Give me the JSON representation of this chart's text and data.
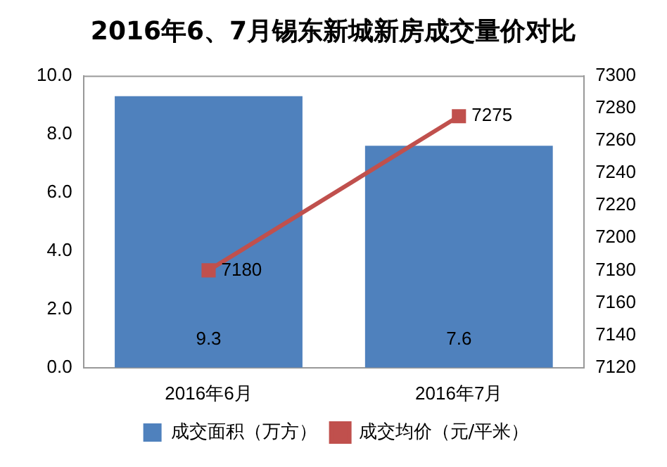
{
  "chart_data": {
    "type": "bar",
    "title": "2016年6、7月锡东新城新房成交量价对比",
    "categories": [
      "2016年6月",
      "2016年7月"
    ],
    "series": [
      {
        "name": "成交面积（万方）",
        "color": "#4f81bd",
        "values": [
          9.3,
          7.6
        ]
      },
      {
        "name": "成交均价（元/平米）",
        "type": "line",
        "axis": "y2",
        "color": "#c0504d",
        "values": [
          7180,
          7275
        ]
      }
    ],
    "ylim": [
      0,
      10
    ],
    "yticks": [
      {
        "value": 0,
        "label": "0.0"
      },
      {
        "value": 2,
        "label": "2.0"
      },
      {
        "value": 4,
        "label": "4.0"
      },
      {
        "value": 6,
        "label": "6.0"
      },
      {
        "value": 8,
        "label": "8.0"
      },
      {
        "value": 10,
        "label": "10.0"
      }
    ],
    "y2lim": [
      7120,
      7300
    ],
    "y2ticks": [
      7120,
      7140,
      7160,
      7180,
      7200,
      7220,
      7240,
      7260,
      7280,
      7300
    ],
    "data_labels": true,
    "legend": "bottom",
    "marker": "square",
    "grid": false
  }
}
